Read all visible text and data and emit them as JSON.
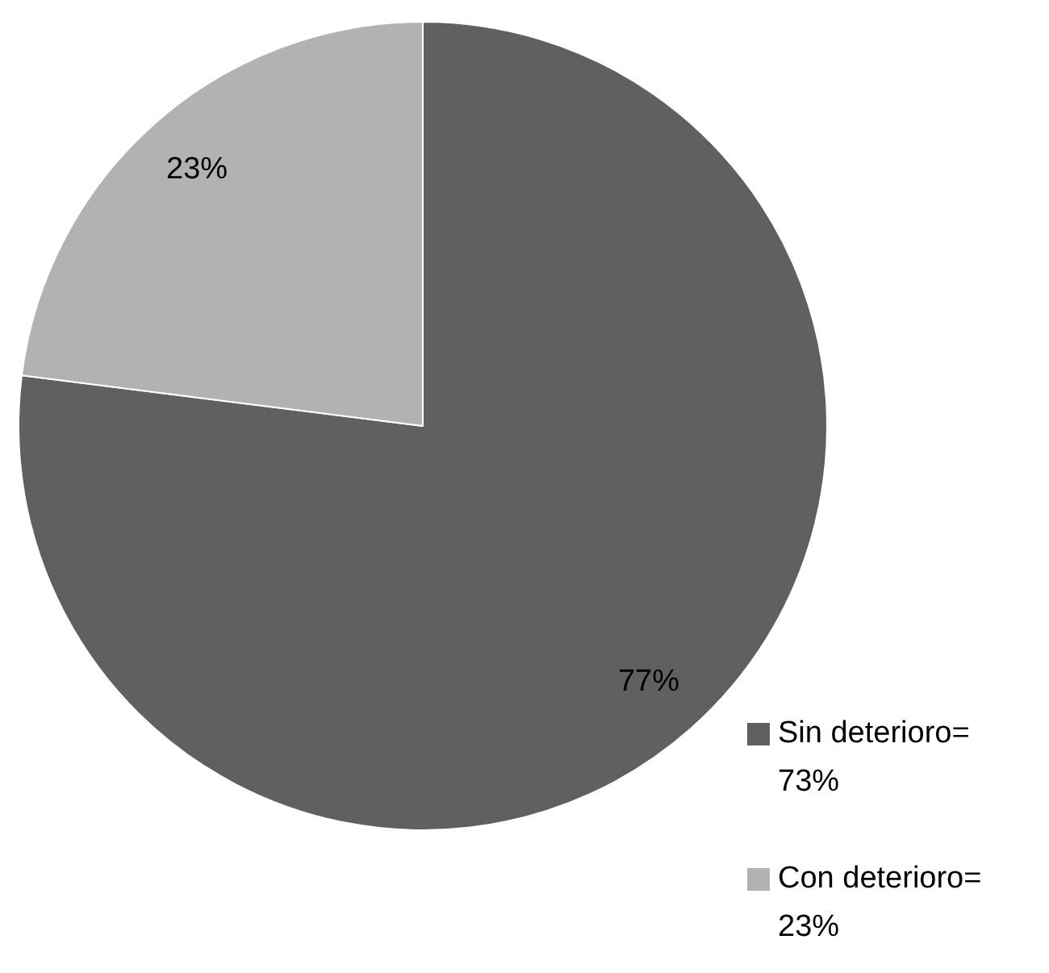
{
  "chart_data": {
    "type": "pie",
    "categories": [
      "Sin deterioro= 73%",
      "Con deterioro= 23%"
    ],
    "values": [
      77,
      23
    ],
    "colors": [
      "#606060",
      "#b2b2b2"
    ],
    "value_labels": [
      "77%",
      "23%"
    ],
    "legend": "bottom right"
  }
}
